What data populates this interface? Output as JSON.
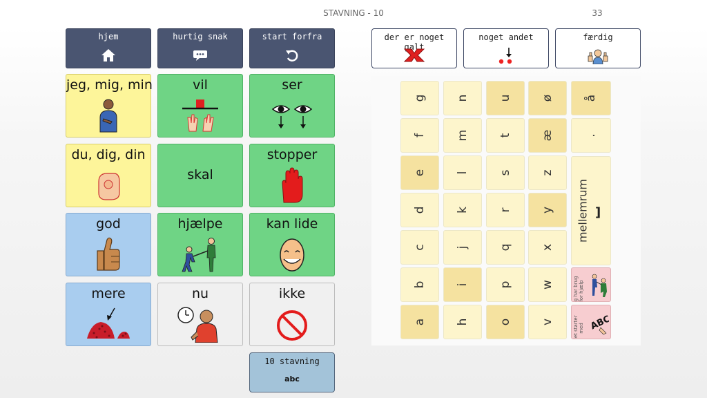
{
  "header": {
    "title": "STAVNING - 10",
    "page_number": "33"
  },
  "nav": {
    "home": "hjem",
    "quick": "hurtig snak",
    "restart": "start forfra"
  },
  "actions": {
    "wrong": "der er noget galt",
    "other": "noget andet",
    "done": "færdig"
  },
  "grid": {
    "jeg": "jeg, mig, min",
    "vil": "vil",
    "ser": "ser",
    "du": "du, dig, din",
    "skal": "skal",
    "stopper": "stopper",
    "god": "god",
    "hjaelpe": "hjælpe",
    "kanlide": "kan lide",
    "mere": "mere",
    "nu": "nu",
    "ikke": "ikke"
  },
  "stavning": {
    "label": "10 stavning",
    "sub": "abc"
  },
  "keyboard": {
    "space_label": "mellemrum",
    "space_symbol": "]",
    "help_label": "jeg har brug for hjælp",
    "starts_label": "det starter med",
    "keys": [
      [
        "g",
        "n",
        "u",
        "ø",
        "å"
      ],
      [
        "f",
        "m",
        "t",
        "æ",
        "."
      ],
      [
        "e",
        "l",
        "s",
        "z"
      ],
      [
        "d",
        "k",
        "r",
        "y"
      ],
      [
        "c",
        "j",
        "q",
        "x"
      ],
      [
        "b",
        "i",
        "p",
        "w"
      ],
      [
        "a",
        "h",
        "o",
        "v"
      ]
    ]
  },
  "colors": {
    "nav_bg": "#4a5571",
    "yellow": "#fdf59a",
    "green": "#6fd485",
    "blue": "#a9cdef",
    "grey": "#f0f0f0",
    "key_light": "#fdf5cc",
    "key_dark": "#f5e2a0",
    "pink": "#f7cdd0"
  },
  "icons": {
    "home": "house-icon",
    "quick": "speech-bubble-icon",
    "restart": "undo-arrow-icon",
    "wrong": "red-x-icon",
    "other": "arrow-dots-icon",
    "done": "thumbs-up-person-icon"
  }
}
